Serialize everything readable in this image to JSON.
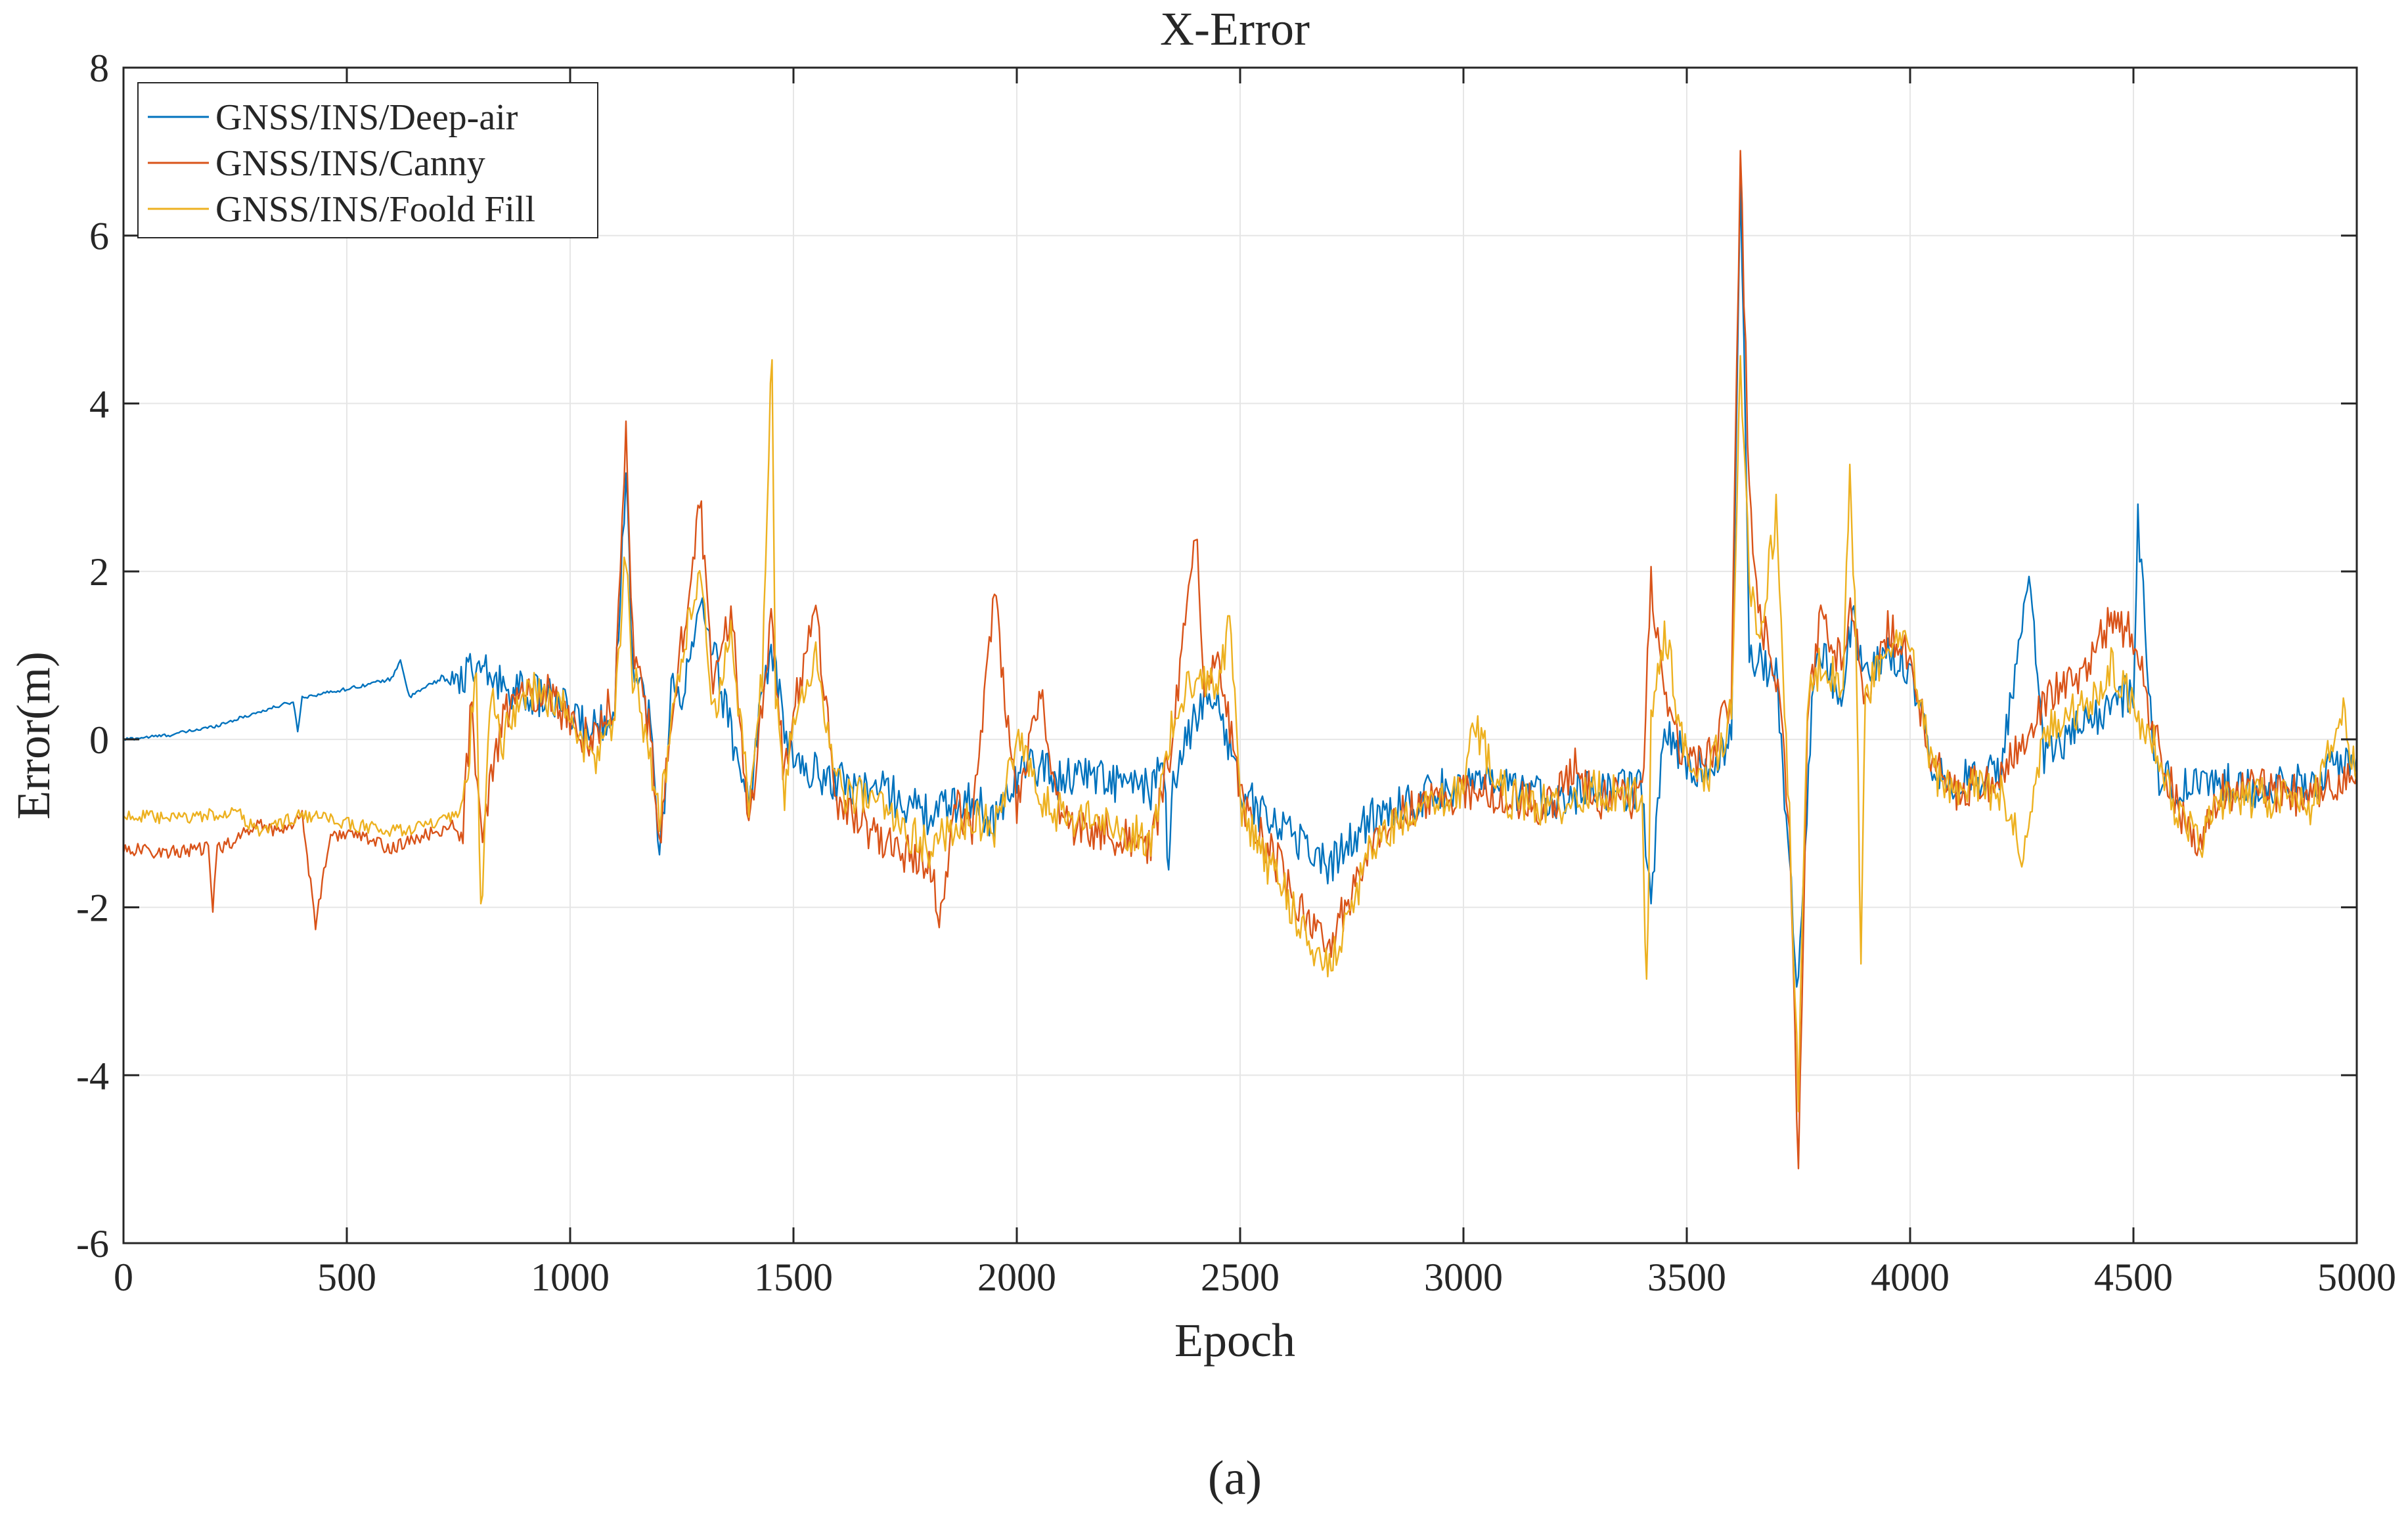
{
  "chart_data": {
    "type": "line",
    "title": "X-Error",
    "xlabel": "Epoch",
    "ylabel": "Error(m)",
    "caption": "(a)",
    "xlim": [
      0,
      5000
    ],
    "ylim": [
      -6,
      8
    ],
    "xticks": [
      0,
      500,
      1000,
      1500,
      2000,
      2500,
      3000,
      3500,
      4000,
      4500,
      5000
    ],
    "yticks": [
      -6,
      -4,
      -2,
      0,
      2,
      4,
      6,
      8
    ],
    "grid": true,
    "legend_position": "top-left",
    "series": [
      {
        "name": "GNSS/INS/Deep-air",
        "color": "#0072BD",
        "points": [
          [
            0,
            0.0
          ],
          [
            100,
            0.05
          ],
          [
            200,
            0.15
          ],
          [
            300,
            0.32
          ],
          [
            380,
            0.45
          ],
          [
            390,
            0.1
          ],
          [
            400,
            0.5
          ],
          [
            500,
            0.6
          ],
          [
            600,
            0.72
          ],
          [
            620,
            0.95
          ],
          [
            640,
            0.5
          ],
          [
            700,
            0.7
          ],
          [
            760,
            0.75
          ],
          [
            800,
            0.8
          ],
          [
            850,
            0.65
          ],
          [
            900,
            0.55
          ],
          [
            950,
            0.5
          ],
          [
            1000,
            0.3
          ],
          [
            1050,
            0.1
          ],
          [
            1100,
            0.4
          ],
          [
            1125,
            3.2
          ],
          [
            1140,
            1.0
          ],
          [
            1180,
            0.2
          ],
          [
            1200,
            -1.5
          ],
          [
            1230,
            0.8
          ],
          [
            1250,
            0.5
          ],
          [
            1280,
            1.2
          ],
          [
            1300,
            1.6
          ],
          [
            1350,
            0.3
          ],
          [
            1380,
            -0.3
          ],
          [
            1400,
            -0.8
          ],
          [
            1430,
            0.6
          ],
          [
            1450,
            1.0
          ],
          [
            1480,
            0.2
          ],
          [
            1500,
            -0.3
          ],
          [
            1600,
            -0.5
          ],
          [
            1700,
            -0.6
          ],
          [
            1800,
            -0.9
          ],
          [
            1900,
            -0.7
          ],
          [
            1950,
            -1.0
          ],
          [
            2000,
            -0.4
          ],
          [
            2050,
            -0.3
          ],
          [
            2100,
            -0.5
          ],
          [
            2150,
            -0.35
          ],
          [
            2200,
            -0.5
          ],
          [
            2300,
            -0.6
          ],
          [
            2330,
            -0.3
          ],
          [
            2340,
            -1.8
          ],
          [
            2350,
            -0.5
          ],
          [
            2400,
            0.3
          ],
          [
            2450,
            0.5
          ],
          [
            2500,
            -0.6
          ],
          [
            2550,
            -0.9
          ],
          [
            2600,
            -1.0
          ],
          [
            2650,
            -1.3
          ],
          [
            2700,
            -1.5
          ],
          [
            2750,
            -1.2
          ],
          [
            2800,
            -0.9
          ],
          [
            2900,
            -0.7
          ],
          [
            3000,
            -0.5
          ],
          [
            3100,
            -0.6
          ],
          [
            3200,
            -0.7
          ],
          [
            3300,
            -0.6
          ],
          [
            3400,
            -0.6
          ],
          [
            3420,
            -2.0
          ],
          [
            3450,
            0.2
          ],
          [
            3500,
            -0.3
          ],
          [
            3550,
            -0.4
          ],
          [
            3600,
            0.0
          ],
          [
            3620,
            6.9
          ],
          [
            3640,
            1.0
          ],
          [
            3700,
            0.8
          ],
          [
            3730,
            -1.5
          ],
          [
            3750,
            -3.0
          ],
          [
            3780,
            0.5
          ],
          [
            3800,
            1.0
          ],
          [
            3850,
            0.5
          ],
          [
            3870,
            1.5
          ],
          [
            3900,
            0.7
          ],
          [
            3950,
            1.0
          ],
          [
            4000,
            0.9
          ],
          [
            4050,
            -0.3
          ],
          [
            4100,
            -0.5
          ],
          [
            4200,
            -0.4
          ],
          [
            4270,
            1.9
          ],
          [
            4300,
            -0.2
          ],
          [
            4400,
            0.2
          ],
          [
            4500,
            0.6
          ],
          [
            4510,
            2.6
          ],
          [
            4550,
            -0.4
          ],
          [
            4600,
            -0.6
          ],
          [
            4700,
            -0.5
          ],
          [
            4800,
            -0.6
          ],
          [
            4900,
            -0.5
          ],
          [
            5000,
            -0.2
          ]
        ]
      },
      {
        "name": "GNSS/INS/Canny",
        "color": "#D95319",
        "points": [
          [
            0,
            -1.3
          ],
          [
            100,
            -1.35
          ],
          [
            190,
            -1.3
          ],
          [
            200,
            -2.0
          ],
          [
            210,
            -1.3
          ],
          [
            250,
            -1.2
          ],
          [
            300,
            -1.0
          ],
          [
            350,
            -1.1
          ],
          [
            400,
            -0.9
          ],
          [
            430,
            -2.2
          ],
          [
            460,
            -1.2
          ],
          [
            500,
            -1.1
          ],
          [
            600,
            -1.3
          ],
          [
            700,
            -1.1
          ],
          [
            760,
            -1.0
          ],
          [
            780,
            0.5
          ],
          [
            800,
            -1.2
          ],
          [
            850,
            0.3
          ],
          [
            900,
            0.5
          ],
          [
            950,
            0.6
          ],
          [
            1000,
            0.2
          ],
          [
            1050,
            0.0
          ],
          [
            1100,
            0.5
          ],
          [
            1125,
            3.6
          ],
          [
            1140,
            1.2
          ],
          [
            1180,
            0.0
          ],
          [
            1200,
            -1.4
          ],
          [
            1230,
            0.5
          ],
          [
            1260,
            1.5
          ],
          [
            1290,
            2.9
          ],
          [
            1320,
            0.5
          ],
          [
            1360,
            1.6
          ],
          [
            1400,
            -1.1
          ],
          [
            1430,
            0.5
          ],
          [
            1450,
            1.5
          ],
          [
            1480,
            -0.5
          ],
          [
            1500,
            0.3
          ],
          [
            1550,
            1.5
          ],
          [
            1600,
            -0.8
          ],
          [
            1700,
            -1.2
          ],
          [
            1800,
            -1.5
          ],
          [
            1830,
            -2.1
          ],
          [
            1860,
            -0.8
          ],
          [
            1900,
            -1.0
          ],
          [
            1950,
            1.8
          ],
          [
            2000,
            -0.9
          ],
          [
            2050,
            0.6
          ],
          [
            2100,
            -1.0
          ],
          [
            2200,
            -1.1
          ],
          [
            2300,
            -1.3
          ],
          [
            2350,
            0.0
          ],
          [
            2400,
            2.6
          ],
          [
            2420,
            0.5
          ],
          [
            2450,
            1.1
          ],
          [
            2500,
            -0.7
          ],
          [
            2550,
            -1.2
          ],
          [
            2600,
            -1.6
          ],
          [
            2650,
            -2.2
          ],
          [
            2700,
            -2.5
          ],
          [
            2750,
            -1.8
          ],
          [
            2800,
            -1.1
          ],
          [
            2900,
            -0.8
          ],
          [
            3000,
            -0.6
          ],
          [
            3100,
            -0.7
          ],
          [
            3200,
            -0.8
          ],
          [
            3250,
            -0.3
          ],
          [
            3300,
            -0.7
          ],
          [
            3400,
            -0.7
          ],
          [
            3420,
            1.9
          ],
          [
            3450,
            0.4
          ],
          [
            3500,
            -0.3
          ],
          [
            3550,
            -0.2
          ],
          [
            3600,
            0.5
          ],
          [
            3620,
            7.0
          ],
          [
            3640,
            2.9
          ],
          [
            3660,
            1.5
          ],
          [
            3700,
            0.8
          ],
          [
            3730,
            -1.0
          ],
          [
            3750,
            -5.1
          ],
          [
            3770,
            0.3
          ],
          [
            3800,
            1.5
          ],
          [
            3850,
            0.8
          ],
          [
            3870,
            1.6
          ],
          [
            3900,
            0.5
          ],
          [
            3950,
            1.3
          ],
          [
            4000,
            1.0
          ],
          [
            4050,
            -0.3
          ],
          [
            4100,
            -0.6
          ],
          [
            4200,
            -0.5
          ],
          [
            4300,
            0.5
          ],
          [
            4400,
            0.8
          ],
          [
            4450,
            1.5
          ],
          [
            4500,
            1.2
          ],
          [
            4550,
            0.0
          ],
          [
            4600,
            -0.8
          ],
          [
            4650,
            -1.3
          ],
          [
            4700,
            -0.6
          ],
          [
            4800,
            -0.6
          ],
          [
            4900,
            -0.7
          ],
          [
            5000,
            -0.4
          ]
        ]
      },
      {
        "name": "GNSS/INS/Foold Fill",
        "color": "#EDB120",
        "points": [
          [
            0,
            -0.9
          ],
          [
            100,
            -0.95
          ],
          [
            200,
            -0.9
          ],
          [
            250,
            -0.85
          ],
          [
            300,
            -1.1
          ],
          [
            400,
            -0.9
          ],
          [
            500,
            -1.0
          ],
          [
            600,
            -1.1
          ],
          [
            700,
            -1.0
          ],
          [
            760,
            -0.9
          ],
          [
            790,
            0.8
          ],
          [
            800,
            -2.2
          ],
          [
            820,
            0.5
          ],
          [
            850,
            0.0
          ],
          [
            900,
            0.6
          ],
          [
            950,
            0.5
          ],
          [
            1000,
            0.3
          ],
          [
            1050,
            -0.3
          ],
          [
            1100,
            0.3
          ],
          [
            1125,
            2.3
          ],
          [
            1140,
            0.8
          ],
          [
            1180,
            -0.2
          ],
          [
            1200,
            -1.0
          ],
          [
            1230,
            0.4
          ],
          [
            1260,
            1.2
          ],
          [
            1290,
            2.1
          ],
          [
            1320,
            0.3
          ],
          [
            1360,
            1.2
          ],
          [
            1400,
            -0.8
          ],
          [
            1430,
            0.8
          ],
          [
            1452,
            4.65
          ],
          [
            1460,
            0.5
          ],
          [
            1480,
            -0.6
          ],
          [
            1500,
            0.2
          ],
          [
            1550,
            1.0
          ],
          [
            1600,
            -0.6
          ],
          [
            1700,
            -0.8
          ],
          [
            1800,
            -1.3
          ],
          [
            1900,
            -0.9
          ],
          [
            1950,
            -1.1
          ],
          [
            2000,
            0.0
          ],
          [
            2050,
            -0.7
          ],
          [
            2100,
            -0.9
          ],
          [
            2200,
            -1.0
          ],
          [
            2300,
            -1.2
          ],
          [
            2350,
            0.2
          ],
          [
            2400,
            0.8
          ],
          [
            2450,
            0.7
          ],
          [
            2480,
            1.4
          ],
          [
            2500,
            -0.8
          ],
          [
            2550,
            -1.4
          ],
          [
            2600,
            -1.8
          ],
          [
            2650,
            -2.4
          ],
          [
            2700,
            -2.7
          ],
          [
            2750,
            -2.0
          ],
          [
            2800,
            -1.2
          ],
          [
            2900,
            -0.9
          ],
          [
            3000,
            -0.6
          ],
          [
            3020,
            0.2
          ],
          [
            3100,
            -0.7
          ],
          [
            3200,
            -0.8
          ],
          [
            3300,
            -0.6
          ],
          [
            3400,
            -0.7
          ],
          [
            3410,
            -3.1
          ],
          [
            3420,
            0.2
          ],
          [
            3450,
            1.3
          ],
          [
            3500,
            -0.3
          ],
          [
            3550,
            -0.4
          ],
          [
            3600,
            0.3
          ],
          [
            3620,
            4.6
          ],
          [
            3640,
            2.0
          ],
          [
            3660,
            1.0
          ],
          [
            3700,
            2.7
          ],
          [
            3730,
            -1.0
          ],
          [
            3750,
            -4.4
          ],
          [
            3770,
            0.4
          ],
          [
            3800,
            0.9
          ],
          [
            3850,
            0.7
          ],
          [
            3865,
            3.35
          ],
          [
            3880,
            1.0
          ],
          [
            3890,
            -2.7
          ],
          [
            3900,
            0.5
          ],
          [
            3950,
            1.2
          ],
          [
            4000,
            1.1
          ],
          [
            4050,
            -0.4
          ],
          [
            4100,
            -0.6
          ],
          [
            4200,
            -0.6
          ],
          [
            4250,
            -1.3
          ],
          [
            4300,
            0.1
          ],
          [
            4400,
            0.4
          ],
          [
            4450,
            0.9
          ],
          [
            4500,
            0.4
          ],
          [
            4550,
            -0.1
          ],
          [
            4600,
            -0.9
          ],
          [
            4650,
            -1.2
          ],
          [
            4700,
            -0.7
          ],
          [
            4800,
            -0.7
          ],
          [
            4900,
            -0.8
          ],
          [
            4970,
            0.3
          ],
          [
            5000,
            -0.5
          ]
        ]
      }
    ]
  }
}
